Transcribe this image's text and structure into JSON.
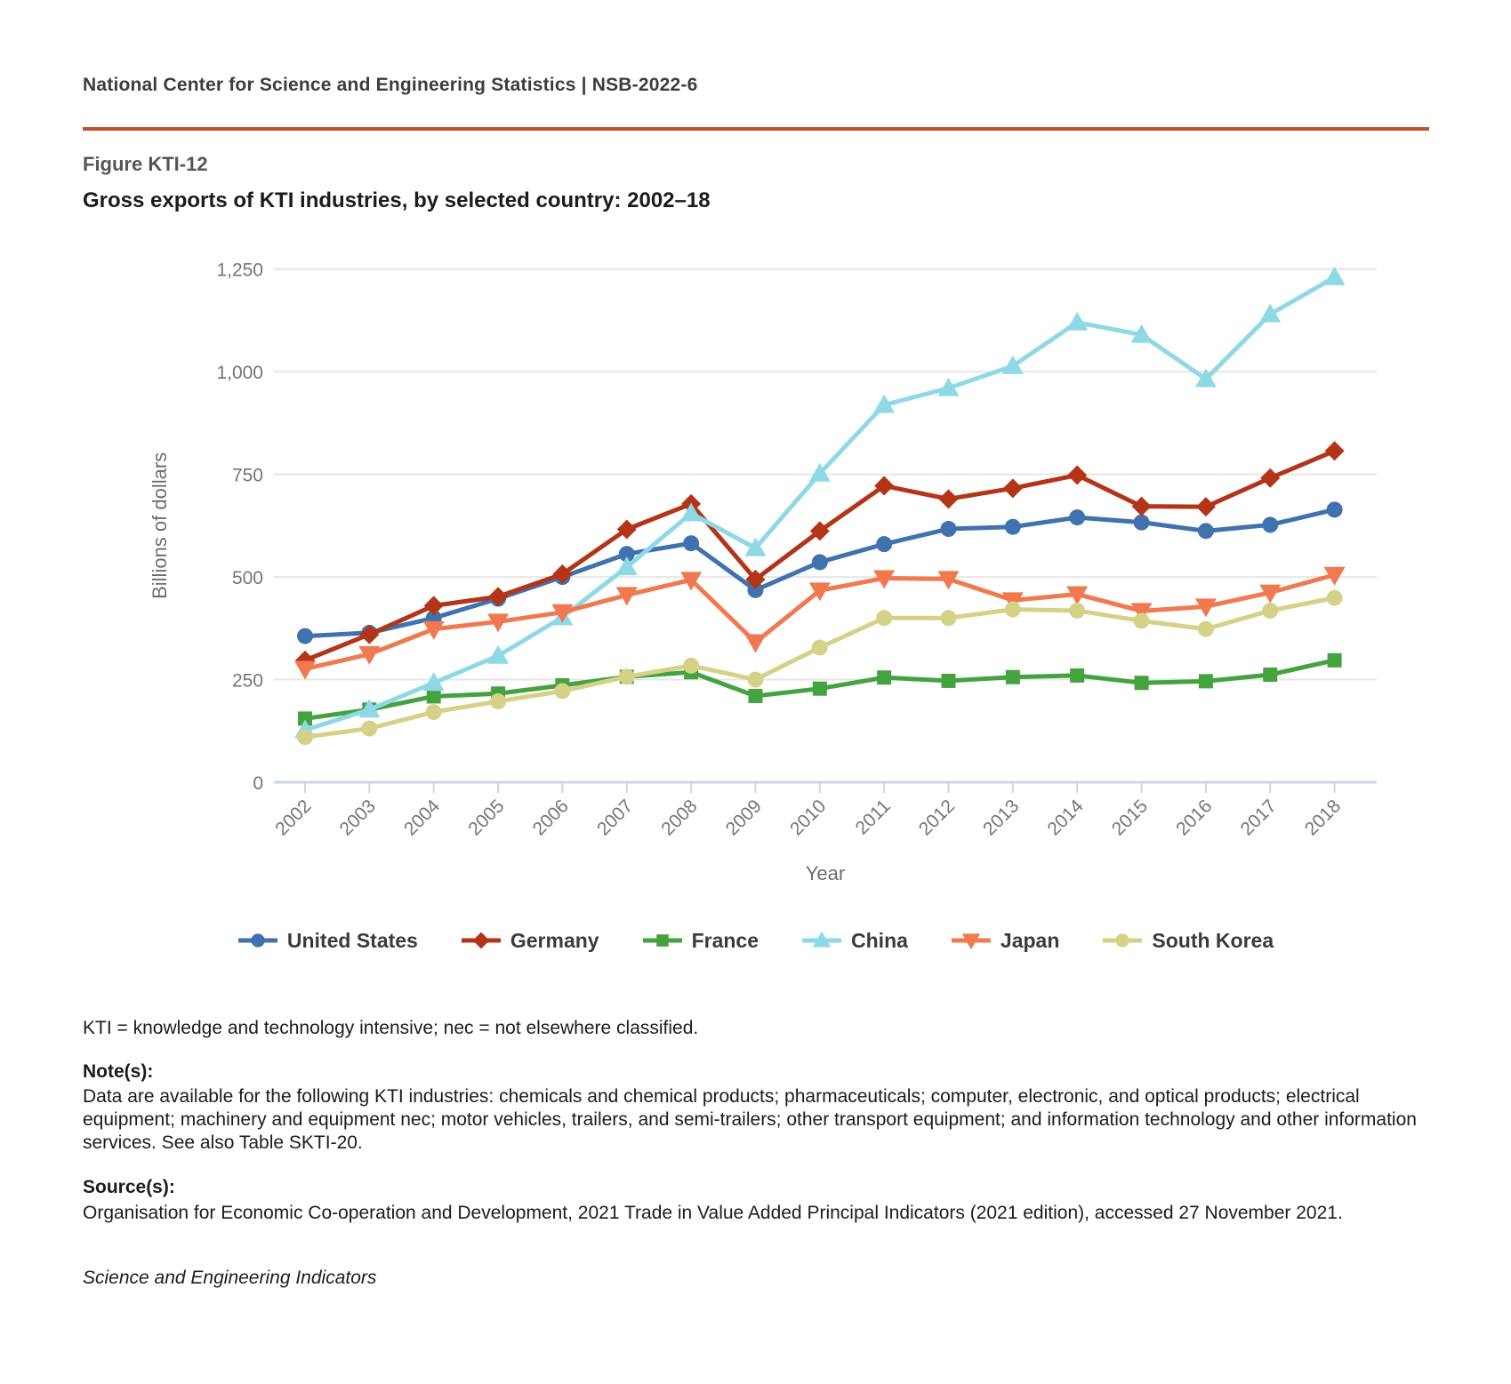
{
  "header": {
    "text": "National Center for Science and Engineering Statistics  |  NSB-2022-6",
    "rule_color": "#c0512e"
  },
  "figure": {
    "label": "Figure KTI-12",
    "title": "Gross exports of KTI industries, by selected country: 2002–18"
  },
  "chart_data": {
    "type": "line",
    "title": "Gross exports of KTI industries, by selected country: 2002–18",
    "xlabel": "Year",
    "ylabel": "Billions of dollars",
    "ylim": [
      0,
      1250
    ],
    "yticks": [
      0,
      250,
      500,
      750,
      1000,
      1250
    ],
    "grid": true,
    "legend_position": "bottom",
    "categories": [
      2002,
      2003,
      2004,
      2005,
      2006,
      2007,
      2008,
      2009,
      2010,
      2011,
      2012,
      2013,
      2014,
      2015,
      2016,
      2017,
      2018
    ],
    "series": [
      {
        "name": "United States",
        "color": "#3f72ae",
        "marker": "circle",
        "values": [
          356,
          364,
          400,
          447,
          500,
          556,
          582,
          468,
          536,
          580,
          617,
          622,
          645,
          633,
          612,
          627,
          664
        ]
      },
      {
        "name": "Germany",
        "color": "#b43418",
        "marker": "diamond",
        "values": [
          297,
          360,
          430,
          452,
          507,
          616,
          678,
          494,
          612,
          722,
          690,
          716,
          748,
          672,
          671,
          741,
          807
        ]
      },
      {
        "name": "France",
        "color": "#45a33f",
        "marker": "square",
        "values": [
          155,
          177,
          209,
          216,
          236,
          257,
          268,
          210,
          228,
          255,
          247,
          256,
          260,
          242,
          246,
          262,
          297
        ]
      },
      {
        "name": "China",
        "color": "#8fd9e7",
        "marker": "triangle-up",
        "values": [
          127,
          177,
          242,
          308,
          402,
          524,
          655,
          570,
          752,
          919,
          960,
          1014,
          1120,
          1090,
          982,
          1140,
          1230
        ]
      },
      {
        "name": "Japan",
        "color": "#f07950",
        "marker": "triangle-down",
        "values": [
          276,
          312,
          373,
          391,
          414,
          456,
          493,
          341,
          467,
          497,
          495,
          443,
          458,
          417,
          428,
          462,
          505
        ]
      },
      {
        "name": "South Korea",
        "color": "#d5d288",
        "marker": "circle",
        "values": [
          110,
          131,
          171,
          197,
          222,
          257,
          284,
          250,
          328,
          400,
          400,
          421,
          418,
          393,
          373,
          418,
          449
        ]
      }
    ],
    "axis_colors": {
      "grid": "#e6e6e6",
      "axis_line": "#ccd6e6",
      "tick_label": "#757575",
      "axis_title": "#6e6e6e"
    }
  },
  "footer": {
    "abbr_note": "KTI = knowledge and technology intensive; nec = not elsewhere classified.",
    "notes_label": "Note(s):",
    "notes_text": "Data are available for the following KTI industries: chemicals and chemical products; pharmaceuticals; computer, electronic, and optical products; electrical equipment; machinery and equipment nec; motor vehicles, trailers, and semi-trailers; other transport equipment; and information technology and other information services. See also Table SKTI-20.",
    "sources_label": "Source(s):",
    "sources_text": "Organisation for Economic Co-operation and Development, 2021 Trade in Value Added Principal Indicators (2021 edition), accessed 27 November 2021.",
    "footer_italic": "Science and Engineering Indicators"
  }
}
